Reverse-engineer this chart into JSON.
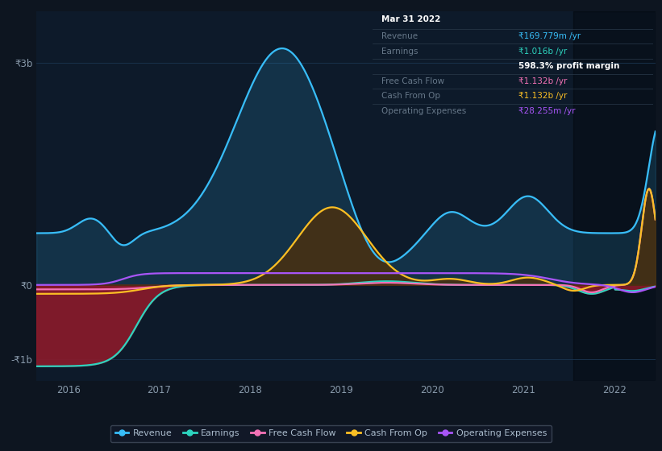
{
  "bg_color": "#0d1520",
  "plot_bg_color": "#0d1a2a",
  "grid_color": "#1a3550",
  "zero_line_color": "#5a7090",
  "revenue_color": "#38bdf8",
  "earnings_color": "#2dd4bf",
  "fcf_color": "#f472b6",
  "cashfromop_color": "#fbbf24",
  "opex_color": "#a855f7",
  "legend_bg": "#111827",
  "legend_border": "#374151",
  "tooltip_bg": "#050a10",
  "tooltip_border": "#374151",
  "tooltip_title": "Mar 31 2022",
  "tooltip_revenue_val": "₹169.779m /yr",
  "tooltip_revenue_color": "#38bdf8",
  "tooltip_earnings_val": "₹1.016b /yr",
  "tooltip_earnings_color": "#2dd4bf",
  "tooltip_profit_margin": "598.3% profit margin",
  "tooltip_fcf_val": "₹1.132b /yr",
  "tooltip_fcf_color": "#f472b6",
  "tooltip_cashfromop_val": "₹1.132b /yr",
  "tooltip_cashfromop_color": "#fbbf24",
  "tooltip_opex_val": "₹28.255m /yr",
  "tooltip_opex_color": "#a855f7",
  "shaded_region_start": 2021.55,
  "xlim_start": 2015.65,
  "xlim_end": 2022.45,
  "ylim_bottom": -1300000000,
  "ylim_top": 3700000000
}
